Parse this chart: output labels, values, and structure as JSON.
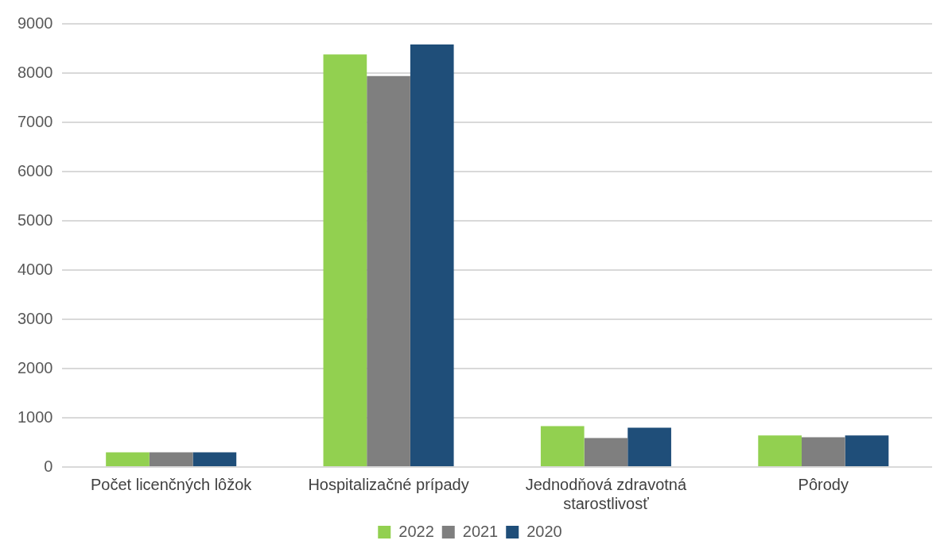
{
  "chart_data": {
    "type": "bar",
    "categories": [
      "Počet licenčných lôžok",
      "Hospitalizačné prípady",
      [
        "Jednodňová zdravotná",
        "starostlivosť"
      ],
      "Pôrody"
    ],
    "series": [
      {
        "name": "2022",
        "color": "#92d050",
        "values": [
          300,
          8380,
          830,
          640
        ]
      },
      {
        "name": "2021",
        "color": "#7f7f7f",
        "values": [
          300,
          7940,
          590,
          605
        ]
      },
      {
        "name": "2020",
        "color": "#1f4e79",
        "values": [
          300,
          8580,
          800,
          640
        ]
      }
    ],
    "ylim": [
      0,
      9000
    ],
    "yticks": [
      0,
      1000,
      2000,
      3000,
      4000,
      5000,
      6000,
      7000,
      8000,
      9000
    ],
    "grid": "y",
    "legend": "bottom"
  }
}
